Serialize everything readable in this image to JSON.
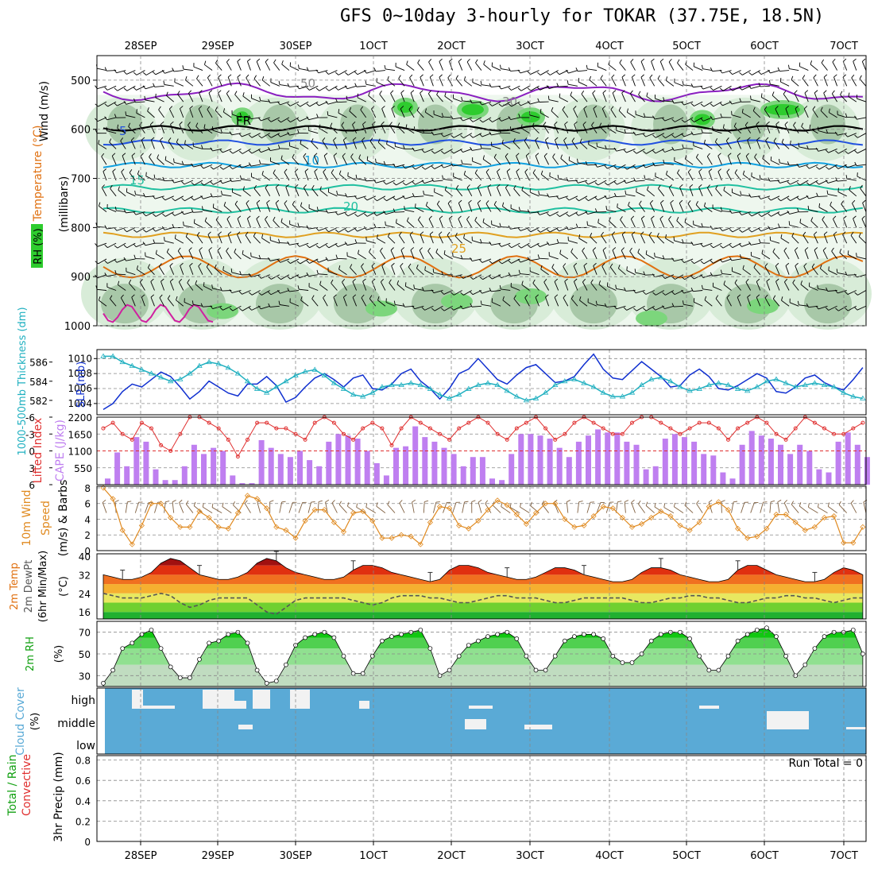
{
  "title": "GFS 0~10day 3-hourly for TOKAR (37.75E, 18.5N)",
  "x_ticks": [
    "28SEP",
    "29SEP",
    "30SEP",
    "1OCT",
    "2OCT",
    "3OCT",
    "4OCT",
    "5OCT",
    "6OCT",
    "7OCT"
  ],
  "colors": {
    "rh_light": "#d8ecd8",
    "rh_mid": "#a8c8a8",
    "rh_dark": "#7cd67c",
    "rh_bright": "#2ecc2e",
    "purple": "#8a1fc0",
    "blue": "#2050e0",
    "lightblue": "#10a0e0",
    "teal": "#20c0a0",
    "orange": "#e0a020",
    "dkorange": "#e07010",
    "magenta": "#d020a0",
    "cape": "#bf7ff0",
    "li": "#e03030",
    "slp": "#1030d0",
    "thick": "#20b0c0",
    "wind": "#e08a20",
    "cloud": "#5aaad6"
  },
  "chart_data": [
    {
      "type": "heatmap",
      "name": "upper-air",
      "ylabel_parts": [
        "Wind (m/s)",
        "Temperature (°C)",
        "RH (%)",
        "(millibars)"
      ],
      "yticks": [
        500,
        600,
        700,
        800,
        900,
        1000
      ],
      "ylim": [
        450,
        1000
      ],
      "isotherm_labels": [
        {
          "text": "5"
        },
        {
          "text": "10"
        },
        {
          "text": "15"
        },
        {
          "text": "20"
        },
        {
          "text": "25"
        },
        {
          "text": "FR"
        },
        {
          "text": "50"
        },
        {
          "text": "30"
        }
      ],
      "isotherms": [
        {
          "temp": "FR",
          "level": 598
        },
        {
          "temp": "5",
          "level": 627
        },
        {
          "temp": "10",
          "level": 673
        },
        {
          "temp": "15",
          "level": 718
        },
        {
          "temp": "20",
          "level": 765
        },
        {
          "temp": "25",
          "level": 815
        },
        {
          "temp": "-5",
          "level": 525
        }
      ]
    },
    {
      "type": "line",
      "name": "slp-thickness",
      "ylabel_left": "1000-500mb Thickness (dm)",
      "ylabel_right": "SLP (mb)",
      "yticks_left": [
        582,
        584,
        586
      ],
      "yticks_right": [
        1004,
        1006,
        1008,
        1010
      ],
      "ylim_left": [
        580.5,
        587.3
      ],
      "ylim_right": [
        1002.5,
        1011.2
      ],
      "series": [
        {
          "name": "SLP (mb)",
          "axis": "right",
          "values": [
            1003.2,
            1004.0,
            1005.6,
            1006.6,
            1006.2,
            1007.2,
            1008.2,
            1007.6,
            1006.2,
            1004.6,
            1005.6,
            1007.0,
            1006.2,
            1005.4,
            1005.0,
            1006.6,
            1006.6,
            1007.6,
            1006.4,
            1004.2,
            1004.8,
            1006.2,
            1007.4,
            1008.0,
            1007.2,
            1006.2,
            1007.4,
            1007.8,
            1006.0,
            1005.8,
            1006.6,
            1008.0,
            1008.6,
            1007.0,
            1006.0,
            1004.6,
            1006.0,
            1008.0,
            1008.6,
            1010.0,
            1008.6,
            1007.2,
            1006.6,
            1007.8,
            1008.8,
            1009.2,
            1008.0,
            1006.8,
            1007.0,
            1007.6,
            1009.2,
            1010.6,
            1008.6,
            1007.4,
            1007.2,
            1008.4,
            1009.6,
            1008.6,
            1007.6,
            1006.2,
            1006.4,
            1007.8,
            1008.6,
            1007.6,
            1006.0,
            1005.8,
            1006.4,
            1007.2,
            1008.0,
            1007.4,
            1005.6,
            1005.4,
            1006.2,
            1007.4,
            1007.8,
            1006.8,
            1006.2,
            1005.8,
            1007.2,
            1008.8
          ]
        },
        {
          "name": "Thickness (dm)",
          "axis": "left",
          "values": [
            586.6,
            586.6,
            586.0,
            585.6,
            585.2,
            584.8,
            584.4,
            584.0,
            584.2,
            584.8,
            585.6,
            586.0,
            585.8,
            585.4,
            584.8,
            584.0,
            583.2,
            582.8,
            583.4,
            584.0,
            584.6,
            585.0,
            585.2,
            584.6,
            583.8,
            583.2,
            582.6,
            582.4,
            582.8,
            583.4,
            583.6,
            583.6,
            583.8,
            583.6,
            583.2,
            582.6,
            582.2,
            582.6,
            583.2,
            583.6,
            583.8,
            583.6,
            583.0,
            582.4,
            582.0,
            582.2,
            582.8,
            583.6,
            584.0,
            584.2,
            583.8,
            583.4,
            582.8,
            582.4,
            582.4,
            582.8,
            583.6,
            584.2,
            584.4,
            584.0,
            583.4,
            583.0,
            583.2,
            583.6,
            583.8,
            583.6,
            583.2,
            583.0,
            583.4,
            584.0,
            584.2,
            583.8,
            583.4,
            583.6,
            583.8,
            583.6,
            583.4,
            582.8,
            582.4,
            582.2
          ]
        }
      ]
    },
    {
      "type": "bar",
      "name": "cape-li",
      "ylabel_left": "Lifted Index",
      "ylabel_right": "CAPE (J/kg)",
      "yticks_left": [
        "-3",
        "0",
        "3",
        "6",
        "-6"
      ],
      "yticks_right": [
        550,
        1100,
        1650,
        2200
      ],
      "ylim_right": [
        0,
        2200
      ],
      "ylim_left": [
        -6,
        6
      ],
      "series": [
        {
          "name": "CAPE (J/kg)",
          "values": [
            200,
            1050,
            600,
            1550,
            1400,
            500,
            150,
            150,
            600,
            1300,
            1000,
            1200,
            1100,
            300,
            50,
            50,
            1450,
            1200,
            1000,
            900,
            1100,
            800,
            600,
            1400,
            1650,
            1600,
            1500,
            1100,
            700,
            300,
            1200,
            1250,
            1900,
            1550,
            1400,
            1200,
            1000,
            600,
            900,
            900,
            200,
            150,
            1000,
            1650,
            1650,
            1600,
            1500,
            1200,
            900,
            1400,
            1600,
            1800,
            1700,
            1700,
            1400,
            1300,
            500,
            600,
            1500,
            1650,
            1550,
            1400,
            1000,
            950,
            400,
            200,
            1300,
            1750,
            1600,
            1500,
            1300,
            1000,
            1300,
            1100,
            500,
            400,
            1400,
            1700,
            1300,
            900
          ]
        },
        {
          "name": "Lifted Index",
          "values": [
            -4,
            -5,
            -3,
            -2,
            -5,
            -4,
            -1,
            0,
            -3,
            -6,
            -6,
            -5,
            -4,
            -2,
            1,
            -2,
            -5,
            -5,
            -4,
            -4,
            -3,
            -2,
            -5,
            -6,
            -5,
            -3,
            -2,
            -4,
            -5,
            -4,
            -1,
            -4,
            -6,
            -5,
            -4,
            -3,
            -2,
            -4,
            -5,
            -6,
            -5,
            -3,
            -2,
            -4,
            -5,
            -6,
            -4,
            -2,
            -3,
            -5,
            -6,
            -5,
            -4,
            -3,
            -3,
            -5,
            -6,
            -6,
            -5,
            -4,
            -3,
            -4,
            -5,
            -5,
            -4,
            -2,
            -4,
            -5,
            -6,
            -5,
            -3,
            -2,
            -4,
            -6,
            -5,
            -4,
            -3,
            -3,
            -4,
            -5
          ]
        }
      ]
    },
    {
      "type": "line",
      "name": "wind10m",
      "ylabel": "10m Wind Speed (m/s) & Barbs",
      "yticks": [
        0,
        2,
        4,
        6,
        8
      ],
      "ylim": [
        0,
        8.2
      ],
      "series": [
        {
          "name": "10m Wind Speed",
          "values": [
            8.0,
            6.6,
            2.6,
            0.8,
            3.2,
            6.0,
            6.0,
            4.2,
            3.0,
            3.0,
            5.0,
            4.2,
            3.0,
            2.8,
            4.8,
            7.0,
            6.6,
            5.4,
            3.0,
            2.6,
            1.6,
            3.8,
            5.2,
            5.2,
            3.6,
            2.4,
            4.8,
            5.0,
            3.8,
            1.6,
            1.6,
            2.0,
            1.8,
            0.8,
            3.6,
            5.6,
            5.4,
            3.2,
            2.8,
            3.8,
            5.2,
            6.4,
            5.8,
            4.6,
            3.4,
            4.8,
            6.0,
            6.0,
            4.0,
            3.0,
            3.2,
            4.4,
            5.6,
            5.4,
            4.2,
            3.0,
            3.4,
            4.2,
            5.0,
            4.4,
            3.2,
            2.6,
            3.6,
            5.6,
            6.2,
            5.2,
            2.8,
            1.6,
            1.8,
            2.8,
            4.6,
            4.6,
            3.6,
            2.6,
            3.0,
            4.2,
            4.4,
            1.0,
            1.0,
            3.0
          ]
        }
      ]
    },
    {
      "type": "area",
      "name": "temp2m",
      "ylabel": "2m Temp 2m DewPt (6hr Min/Max) (°C)",
      "yticks": [
        16,
        24,
        32,
        40
      ],
      "ylim": [
        13,
        41
      ],
      "series": [
        {
          "name": "2m Temp",
          "values": [
            32,
            31,
            30,
            30,
            31,
            33,
            37,
            39,
            38,
            35,
            32,
            31,
            30,
            30,
            31,
            33,
            37,
            39,
            38,
            35,
            33,
            32,
            31,
            30,
            30,
            31,
            34,
            36,
            36,
            35,
            33,
            32,
            31,
            30,
            29,
            30,
            34,
            36,
            36,
            35,
            33,
            32,
            31,
            30,
            30,
            31,
            33,
            35,
            35,
            34,
            32,
            31,
            30,
            29,
            29,
            30,
            33,
            35,
            35,
            34,
            32,
            31,
            30,
            29,
            29,
            30,
            34,
            36,
            36,
            34,
            32,
            31,
            30,
            29,
            29,
            30,
            33,
            35,
            34,
            32
          ]
        },
        {
          "name": "2m DewPt",
          "values": [
            24,
            23,
            22,
            22,
            22,
            23,
            24,
            23,
            20,
            18,
            19,
            21,
            22,
            22,
            22,
            22,
            19,
            16,
            15,
            18,
            21,
            22,
            22,
            22,
            22,
            22,
            21,
            20,
            19,
            20,
            22,
            23,
            23,
            23,
            22,
            22,
            21,
            20,
            20,
            21,
            22,
            23,
            23,
            22,
            22,
            22,
            21,
            20,
            20,
            21,
            22,
            22,
            22,
            22,
            22,
            21,
            20,
            20,
            21,
            22,
            22,
            23,
            23,
            22,
            22,
            21,
            20,
            20,
            21,
            22,
            22,
            23,
            23,
            22,
            22,
            21,
            20,
            21,
            22,
            22
          ]
        }
      ]
    },
    {
      "type": "area",
      "name": "rh2m",
      "ylabel": "2m RH (%)",
      "yticks": [
        30,
        50,
        70
      ],
      "ylim": [
        20,
        80
      ],
      "series": [
        {
          "name": "2m RH",
          "values": [
            23,
            35,
            55,
            60,
            68,
            72,
            55,
            38,
            28,
            28,
            45,
            60,
            62,
            68,
            70,
            60,
            35,
            23,
            25,
            40,
            58,
            65,
            68,
            70,
            65,
            48,
            32,
            32,
            48,
            62,
            66,
            68,
            70,
            72,
            55,
            30,
            35,
            48,
            58,
            62,
            66,
            68,
            70,
            64,
            48,
            35,
            35,
            48,
            62,
            66,
            68,
            68,
            64,
            48,
            42,
            42,
            50,
            62,
            68,
            70,
            70,
            64,
            48,
            35,
            35,
            48,
            62,
            68,
            72,
            74,
            66,
            48,
            30,
            40,
            55,
            66,
            70,
            70,
            72,
            50
          ]
        }
      ]
    },
    {
      "type": "heatmap",
      "name": "cloud",
      "ylabel": "Cloud Cover (%)",
      "ytick_labels": [
        "high",
        "middle",
        "low"
      ],
      "high": [
        0,
        0,
        0,
        0,
        0,
        0,
        3,
        2,
        0,
        0,
        0,
        0,
        0,
        0,
        0,
        0,
        0,
        0,
        0,
        0,
        0,
        0,
        0,
        0,
        0,
        0,
        0,
        0,
        0,
        0,
        0,
        0,
        0,
        0,
        0,
        0,
        0,
        0,
        0,
        0,
        0,
        0,
        0,
        0,
        0,
        0,
        0,
        0,
        0,
        0,
        0,
        0,
        0,
        0,
        0,
        0,
        0,
        0,
        0,
        0,
        0,
        0,
        0,
        0,
        0,
        0,
        0,
        0,
        0,
        0,
        0,
        0,
        0,
        0,
        0,
        0,
        0,
        0,
        0,
        0
      ],
      "middle": [
        0,
        0,
        0,
        0,
        0,
        0,
        0,
        0,
        0,
        0,
        0,
        0,
        0,
        0,
        0,
        0,
        0,
        0,
        0,
        0,
        0,
        0,
        0,
        0,
        0,
        0,
        0,
        0,
        0,
        0,
        0,
        0,
        0,
        0,
        0,
        0,
        0,
        0,
        0,
        0,
        0,
        0,
        0,
        0,
        0,
        0,
        0,
        0,
        0,
        0,
        0,
        0,
        0,
        0,
        0,
        0,
        0,
        0,
        0,
        0,
        0,
        0,
        0,
        0,
        0,
        0,
        0,
        0,
        0,
        0,
        0,
        0,
        0,
        0,
        0,
        0,
        0,
        0,
        0,
        0
      ]
    },
    {
      "type": "bar",
      "name": "precip",
      "ylabel": "3hr Precip (mm)",
      "ylabel_left": "Total / Rain",
      "ylabel_convective": "Convective",
      "yticks": [
        "0",
        "0.2",
        "0.4",
        "0.6",
        "0.8"
      ],
      "ylim": [
        0,
        1
      ],
      "annotation": "Run Total = 0",
      "values": [
        0,
        0,
        0,
        0,
        0,
        0,
        0,
        0,
        0,
        0
      ]
    }
  ]
}
